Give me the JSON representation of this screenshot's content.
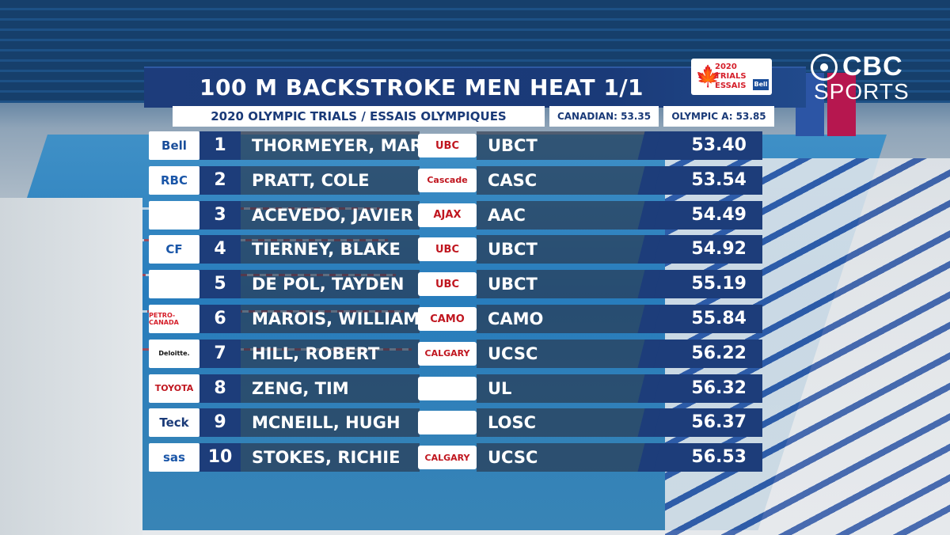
{
  "broadcast": {
    "network_logo_line1": "CBC",
    "network_logo_line2": "SPORTS",
    "event_logo_lines": [
      "2020",
      "TRIALS",
      "ESSAIS"
    ],
    "event_logo_sponsor": "Bell"
  },
  "header": {
    "title": "100 M BACKSTROKE MEN HEAT 1/1",
    "subtitle": "2020 OLYMPIC TRIALS / ESSAIS OLYMPIQUES",
    "canadian_record": "CANADIAN: 53.35",
    "olympic_standard": "OLYMPIC A: 53.85"
  },
  "colors": {
    "header_blue": "#1a3a78",
    "time_blue": "#1d3d7a",
    "club_red": "#c0161f"
  },
  "results": [
    {
      "sponsor": "Bell",
      "sponsor_color": "#1a4e9a",
      "place": "1",
      "name": "THORMEYER, MARKUS",
      "club_logo": "UBC",
      "club": "UBCT",
      "time": "53.40"
    },
    {
      "sponsor": "RBC",
      "sponsor_color": "#1a56a8",
      "place": "2",
      "name": "PRATT, COLE",
      "club_logo": "Cascade",
      "club": "CASC",
      "time": "53.54"
    },
    {
      "sponsor": "",
      "sponsor_color": "#d5202b",
      "place": "3",
      "name": "ACEVEDO, JAVIER",
      "club_logo": "AJAX",
      "club": "AAC",
      "time": "54.49"
    },
    {
      "sponsor": "CF",
      "sponsor_color": "#1a56a8",
      "place": "4",
      "name": "TIERNEY, BLAKE",
      "club_logo": "UBC",
      "club": "UBCT",
      "time": "54.92"
    },
    {
      "sponsor": "",
      "sponsor_color": "#3b6cb0",
      "place": "5",
      "name": "DE POL, TAYDEN",
      "club_logo": "UBC",
      "club": "UBCT",
      "time": "55.19"
    },
    {
      "sponsor": "PETRO-CANADA",
      "sponsor_color": "#d5202b",
      "place": "6",
      "name": "MAROIS, WILLIAM",
      "club_logo": "CAMO",
      "club": "CAMO",
      "time": "55.84"
    },
    {
      "sponsor": "Deloitte.",
      "sponsor_color": "#111111",
      "place": "7",
      "name": "HILL, ROBERT",
      "club_logo": "CALGARY",
      "club": "UCSC",
      "time": "56.22"
    },
    {
      "sponsor": "TOYOTA",
      "sponsor_color": "#c0161f",
      "place": "8",
      "name": "ZENG, TIM",
      "club_logo": "",
      "club": "UL",
      "time": "56.32"
    },
    {
      "sponsor": "Teck",
      "sponsor_color": "#1a3a78",
      "place": "9",
      "name": "MCNEILL, HUGH",
      "club_logo": "",
      "club": "LOSC",
      "time": "56.37"
    },
    {
      "sponsor": "sas",
      "sponsor_color": "#1a56a8",
      "place": "10",
      "name": "STOKES, RICHIE",
      "club_logo": "CALGARY",
      "club": "UCSC",
      "time": "56.53"
    }
  ]
}
